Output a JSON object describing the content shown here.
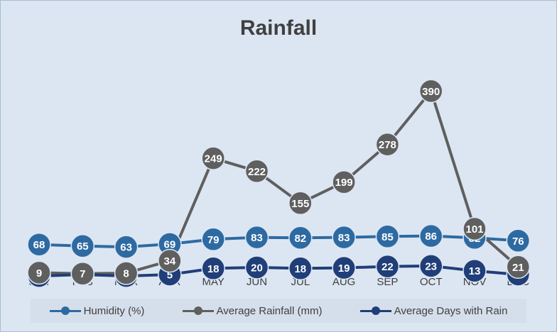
{
  "chart_data": {
    "type": "line",
    "title": "Rainfall",
    "categories": [
      "JAN",
      "FEB",
      "MAR",
      "APR",
      "MAY",
      "JUN",
      "JUL",
      "AUG",
      "SEP",
      "OCT",
      "NOV",
      "DEC"
    ],
    "series": [
      {
        "name": "Humidity (%)",
        "color": "#2e6aa2",
        "values": [
          68,
          65,
          63,
          69,
          79,
          83,
          82,
          83,
          85,
          86,
          82,
          76
        ]
      },
      {
        "name": "Average Rainfall (mm)",
        "color": "#5f5f5f",
        "values": [
          9,
          7,
          8,
          34,
          249,
          222,
          155,
          199,
          278,
          390,
          101,
          21
        ]
      },
      {
        "name": "Average Days with Rain",
        "color": "#203e78",
        "values": [
          2,
          5,
          2,
          5,
          18,
          20,
          18,
          19,
          22,
          23,
          13,
          5
        ]
      }
    ],
    "xlabel": "",
    "ylabel": "",
    "grid": false,
    "legend_position": "bottom"
  }
}
